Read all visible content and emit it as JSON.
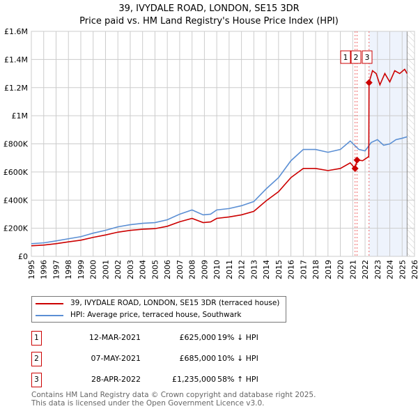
{
  "title": "39, IVYDALE ROAD, LONDON, SE15 3DR",
  "subtitle": "Price paid vs. HM Land Registry's House Price Index (HPI)",
  "chart_data": {
    "type": "line",
    "xlim": [
      1995,
      2026
    ],
    "ylim": [
      0,
      1600000
    ],
    "x_ticks": [
      "1995",
      "1996",
      "1997",
      "1998",
      "1999",
      "2000",
      "2001",
      "2002",
      "2003",
      "2004",
      "2005",
      "2006",
      "2007",
      "2008",
      "2009",
      "2010",
      "2011",
      "2012",
      "2013",
      "2014",
      "2015",
      "2016",
      "2017",
      "2018",
      "2019",
      "2020",
      "2021",
      "2022",
      "2023",
      "2024",
      "2025",
      "2026"
    ],
    "y_ticks": [
      {
        "v": 0,
        "label": "£0"
      },
      {
        "v": 200000,
        "label": "£200K"
      },
      {
        "v": 400000,
        "label": "£400K"
      },
      {
        "v": 600000,
        "label": "£600K"
      },
      {
        "v": 800000,
        "label": "£800K"
      },
      {
        "v": 1000000,
        "label": "£1M"
      },
      {
        "v": 1200000,
        "label": "£1.2M"
      },
      {
        "v": 1400000,
        "label": "£1.4M"
      },
      {
        "v": 1600000,
        "label": "£1.6M"
      }
    ],
    "series": [
      {
        "name": "39, IVYDALE ROAD, LONDON, SE15 3DR (terraced house)",
        "color": "#cc0000",
        "x": [
          1995,
          1996,
          1997,
          1998,
          1999,
          2000,
          2001,
          2002,
          2003,
          2004,
          2005,
          2006,
          2007,
          2008,
          2008.9,
          2009.5,
          2010,
          2011,
          2012,
          2013,
          2014,
          2015,
          2016,
          2017,
          2018,
          2019,
          2020,
          2020.8,
          2021.19,
          2021.35,
          2021.8,
          2022.3,
          2022.32,
          2022.6,
          2022.9,
          2023.2,
          2023.6,
          2024,
          2024.4,
          2024.8,
          2025.2,
          2025.4
        ],
        "y": [
          75000,
          80000,
          90000,
          103000,
          115000,
          135000,
          152000,
          172000,
          185000,
          193000,
          197000,
          214000,
          246000,
          270000,
          240000,
          245000,
          270000,
          280000,
          295000,
          320000,
          395000,
          460000,
          560000,
          625000,
          625000,
          610000,
          625000,
          665000,
          625000,
          685000,
          680000,
          710000,
          1235000,
          1320000,
          1300000,
          1220000,
          1300000,
          1240000,
          1320000,
          1300000,
          1330000,
          1300000
        ]
      },
      {
        "name": "HPI: Average price, terraced house, Southwark",
        "color": "#5b8fd4",
        "x": [
          1995,
          1996,
          1997,
          1998,
          1999,
          2000,
          2001,
          2002,
          2003,
          2004,
          2005,
          2006,
          2007,
          2008,
          2008.9,
          2009.5,
          2010,
          2011,
          2012,
          2013,
          2014,
          2015,
          2016,
          2017,
          2018,
          2019,
          2020,
          2020.8,
          2021.5,
          2022,
          2022.5,
          2023,
          2023.5,
          2024,
          2024.5,
          2025,
          2025.4
        ],
        "y": [
          90000,
          96000,
          110000,
          125000,
          140000,
          165000,
          185000,
          210000,
          225000,
          235000,
          240000,
          260000,
          300000,
          330000,
          295000,
          300000,
          330000,
          340000,
          360000,
          390000,
          480000,
          560000,
          680000,
          760000,
          760000,
          740000,
          760000,
          820000,
          760000,
          750000,
          810000,
          830000,
          790000,
          800000,
          830000,
          840000,
          850000
        ]
      }
    ],
    "sales": [
      {
        "id": "1",
        "x": 2021.19,
        "y": 625000
      },
      {
        "id": "2",
        "x": 2021.35,
        "y": 685000
      },
      {
        "id": "3",
        "x": 2022.32,
        "y": 1235000
      }
    ],
    "shaded_from": 2022.32,
    "hatched_from": 2025.4
  },
  "legend": [
    "39, IVYDALE ROAD, LONDON, SE15 3DR (terraced house)",
    "HPI: Average price, terraced house, Southwark"
  ],
  "transactions": [
    {
      "n": "1",
      "date": "12-MAR-2021",
      "price": "£625,000",
      "hpi": "19% ↓ HPI"
    },
    {
      "n": "2",
      "date": "07-MAY-2021",
      "price": "£685,000",
      "hpi": "10% ↓ HPI"
    },
    {
      "n": "3",
      "date": "28-APR-2022",
      "price": "£1,235,000",
      "hpi": "58% ↑ HPI"
    }
  ],
  "footer": [
    "Contains HM Land Registry data © Crown copyright and database right 2025.",
    "This data is licensed under the Open Government Licence v3.0."
  ]
}
